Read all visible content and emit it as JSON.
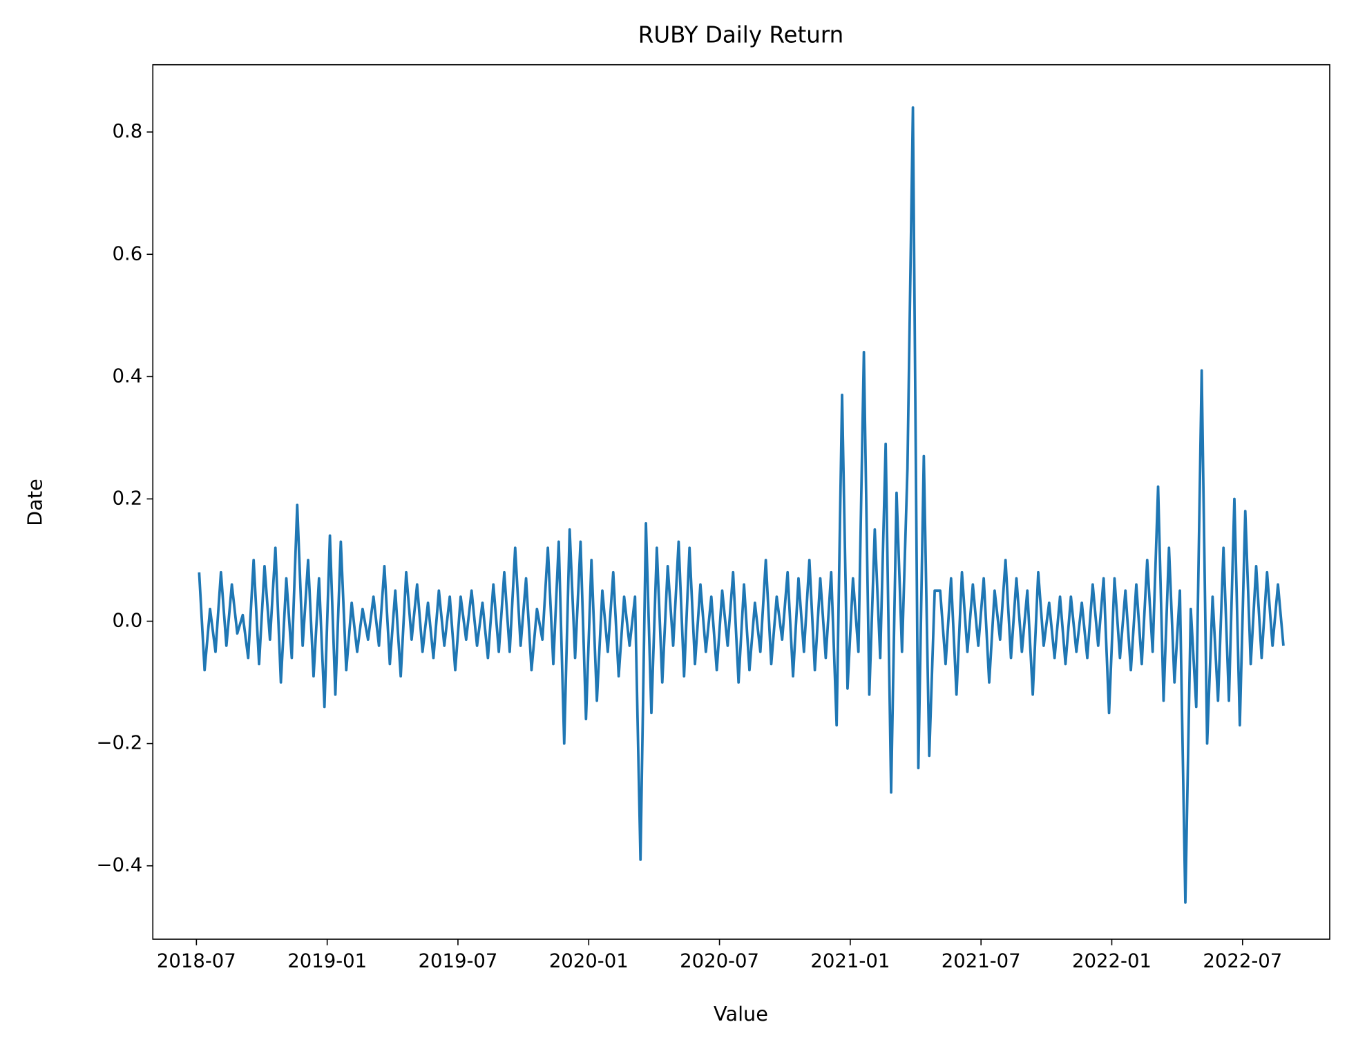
{
  "chart_data": {
    "type": "line",
    "title": "RUBY Daily Return",
    "x_label": "Value",
    "y_label": "Date",
    "x": [
      "2018-07",
      "2018-07",
      "2018-07",
      "2018-07",
      "2018-08",
      "2018-08",
      "2018-08",
      "2018-08",
      "2018-09",
      "2018-09",
      "2018-09",
      "2018-09",
      "2018-10",
      "2018-10",
      "2018-10",
      "2018-10",
      "2018-11",
      "2018-11",
      "2018-11",
      "2018-11",
      "2018-12",
      "2018-12",
      "2018-12",
      "2018-12",
      "2019-01",
      "2019-01",
      "2019-01",
      "2019-01",
      "2019-02",
      "2019-02",
      "2019-02",
      "2019-02",
      "2019-03",
      "2019-03",
      "2019-03",
      "2019-03",
      "2019-04",
      "2019-04",
      "2019-04",
      "2019-04",
      "2019-05",
      "2019-05",
      "2019-05",
      "2019-05",
      "2019-06",
      "2019-06",
      "2019-06",
      "2019-06",
      "2019-07",
      "2019-07",
      "2019-07",
      "2019-07",
      "2019-08",
      "2019-08",
      "2019-08",
      "2019-08",
      "2019-09",
      "2019-09",
      "2019-09",
      "2019-09",
      "2019-10",
      "2019-10",
      "2019-10",
      "2019-10",
      "2019-11",
      "2019-11",
      "2019-11",
      "2019-11",
      "2019-12",
      "2019-12",
      "2019-12",
      "2019-12",
      "2020-01",
      "2020-01",
      "2020-01",
      "2020-01",
      "2020-02",
      "2020-02",
      "2020-02",
      "2020-02",
      "2020-03",
      "2020-03",
      "2020-03",
      "2020-03",
      "2020-04",
      "2020-04",
      "2020-04",
      "2020-04",
      "2020-05",
      "2020-05",
      "2020-05",
      "2020-05",
      "2020-06",
      "2020-06",
      "2020-06",
      "2020-06",
      "2020-07",
      "2020-07",
      "2020-07",
      "2020-07",
      "2020-08",
      "2020-08",
      "2020-08",
      "2020-08",
      "2020-09",
      "2020-09",
      "2020-09",
      "2020-09",
      "2020-10",
      "2020-10",
      "2020-10",
      "2020-10",
      "2020-11",
      "2020-11",
      "2020-11",
      "2020-11",
      "2020-12",
      "2020-12",
      "2020-12",
      "2020-12",
      "2021-01",
      "2021-01",
      "2021-01",
      "2021-01",
      "2021-02",
      "2021-02",
      "2021-02",
      "2021-02",
      "2021-03",
      "2021-03",
      "2021-03",
      "2021-03",
      "2021-04",
      "2021-04",
      "2021-04",
      "2021-04",
      "2021-05",
      "2021-05",
      "2021-05",
      "2021-05",
      "2021-06",
      "2021-06",
      "2021-06",
      "2021-06",
      "2021-07",
      "2021-07",
      "2021-07",
      "2021-07",
      "2021-08",
      "2021-08",
      "2021-08",
      "2021-08",
      "2021-09",
      "2021-09",
      "2021-09",
      "2021-09",
      "2021-10",
      "2021-10",
      "2021-10",
      "2021-10",
      "2021-11",
      "2021-11",
      "2021-11",
      "2021-11",
      "2021-12",
      "2021-12",
      "2021-12",
      "2021-12",
      "2022-01",
      "2022-01",
      "2022-01",
      "2022-01",
      "2022-02",
      "2022-02",
      "2022-02",
      "2022-02",
      "2022-03",
      "2022-03",
      "2022-03",
      "2022-03",
      "2022-04",
      "2022-04",
      "2022-04",
      "2022-04",
      "2022-05",
      "2022-05",
      "2022-05",
      "2022-05",
      "2022-06",
      "2022-06",
      "2022-06",
      "2022-06",
      "2022-07",
      "2022-07",
      "2022-07",
      "2022-07",
      "2022-08",
      "2022-08",
      "2022-08",
      "2022-08"
    ],
    "values": [
      0.08,
      -0.08,
      0.02,
      -0.05,
      0.08,
      -0.04,
      0.06,
      -0.02,
      0.01,
      -0.06,
      0.1,
      -0.07,
      0.09,
      -0.03,
      0.12,
      -0.1,
      0.07,
      -0.06,
      0.19,
      -0.04,
      0.1,
      -0.09,
      0.07,
      -0.14,
      0.14,
      -0.12,
      0.13,
      -0.08,
      0.03,
      -0.05,
      0.02,
      -0.03,
      0.04,
      -0.04,
      0.09,
      -0.07,
      0.05,
      -0.09,
      0.08,
      -0.03,
      0.06,
      -0.05,
      0.03,
      -0.06,
      0.05,
      -0.04,
      0.04,
      -0.08,
      0.04,
      -0.03,
      0.05,
      -0.04,
      0.03,
      -0.06,
      0.06,
      -0.05,
      0.08,
      -0.05,
      0.12,
      -0.04,
      0.07,
      -0.08,
      0.02,
      -0.03,
      0.12,
      -0.07,
      0.13,
      -0.2,
      0.15,
      -0.06,
      0.13,
      -0.16,
      0.1,
      -0.13,
      0.05,
      -0.05,
      0.08,
      -0.09,
      0.04,
      -0.04,
      0.04,
      -0.39,
      0.16,
      -0.15,
      0.12,
      -0.1,
      0.09,
      -0.04,
      0.13,
      -0.09,
      0.12,
      -0.07,
      0.06,
      -0.05,
      0.04,
      -0.08,
      0.05,
      -0.04,
      0.08,
      -0.1,
      0.06,
      -0.08,
      0.03,
      -0.05,
      0.1,
      -0.07,
      0.04,
      -0.03,
      0.08,
      -0.09,
      0.07,
      -0.05,
      0.1,
      -0.08,
      0.07,
      -0.06,
      0.08,
      -0.17,
      0.37,
      -0.11,
      0.07,
      -0.05,
      0.44,
      -0.12,
      0.15,
      -0.06,
      0.29,
      -0.28,
      0.21,
      -0.05,
      0.25,
      0.84,
      -0.24,
      0.27,
      -0.22,
      0.05,
      0.05,
      -0.07,
      0.07,
      -0.12,
      0.08,
      -0.05,
      0.06,
      -0.04,
      0.07,
      -0.1,
      0.05,
      -0.03,
      0.1,
      -0.06,
      0.07,
      -0.05,
      0.05,
      -0.12,
      0.08,
      -0.04,
      0.03,
      -0.06,
      0.04,
      -0.07,
      0.04,
      -0.05,
      0.03,
      -0.06,
      0.06,
      -0.04,
      0.07,
      -0.15,
      0.07,
      -0.06,
      0.05,
      -0.08,
      0.06,
      -0.07,
      0.1,
      -0.05,
      0.22,
      -0.13,
      0.12,
      -0.1,
      0.05,
      -0.46,
      0.02,
      -0.14,
      0.41,
      -0.2,
      0.04,
      -0.13,
      0.12,
      -0.13,
      0.2,
      -0.17,
      0.18,
      -0.07,
      0.09,
      -0.06,
      0.08,
      -0.04,
      0.06,
      -0.04
    ],
    "color": "#1f77b4",
    "xlim": [
      "2018-05",
      "2022-11"
    ],
    "xticks": [
      "2018-07",
      "2019-01",
      "2019-07",
      "2020-01",
      "2020-07",
      "2021-01",
      "2021-07",
      "2022-01",
      "2022-07"
    ],
    "ylim": [
      -0.52,
      0.91
    ],
    "yticks": [
      {
        "value": -0.4,
        "label": "−0.4"
      },
      {
        "value": -0.2,
        "label": "−0.2"
      },
      {
        "value": 0,
        "label": "0.0"
      },
      0.2,
      0.4,
      0.6,
      0.8
    ],
    "grid": false
  }
}
